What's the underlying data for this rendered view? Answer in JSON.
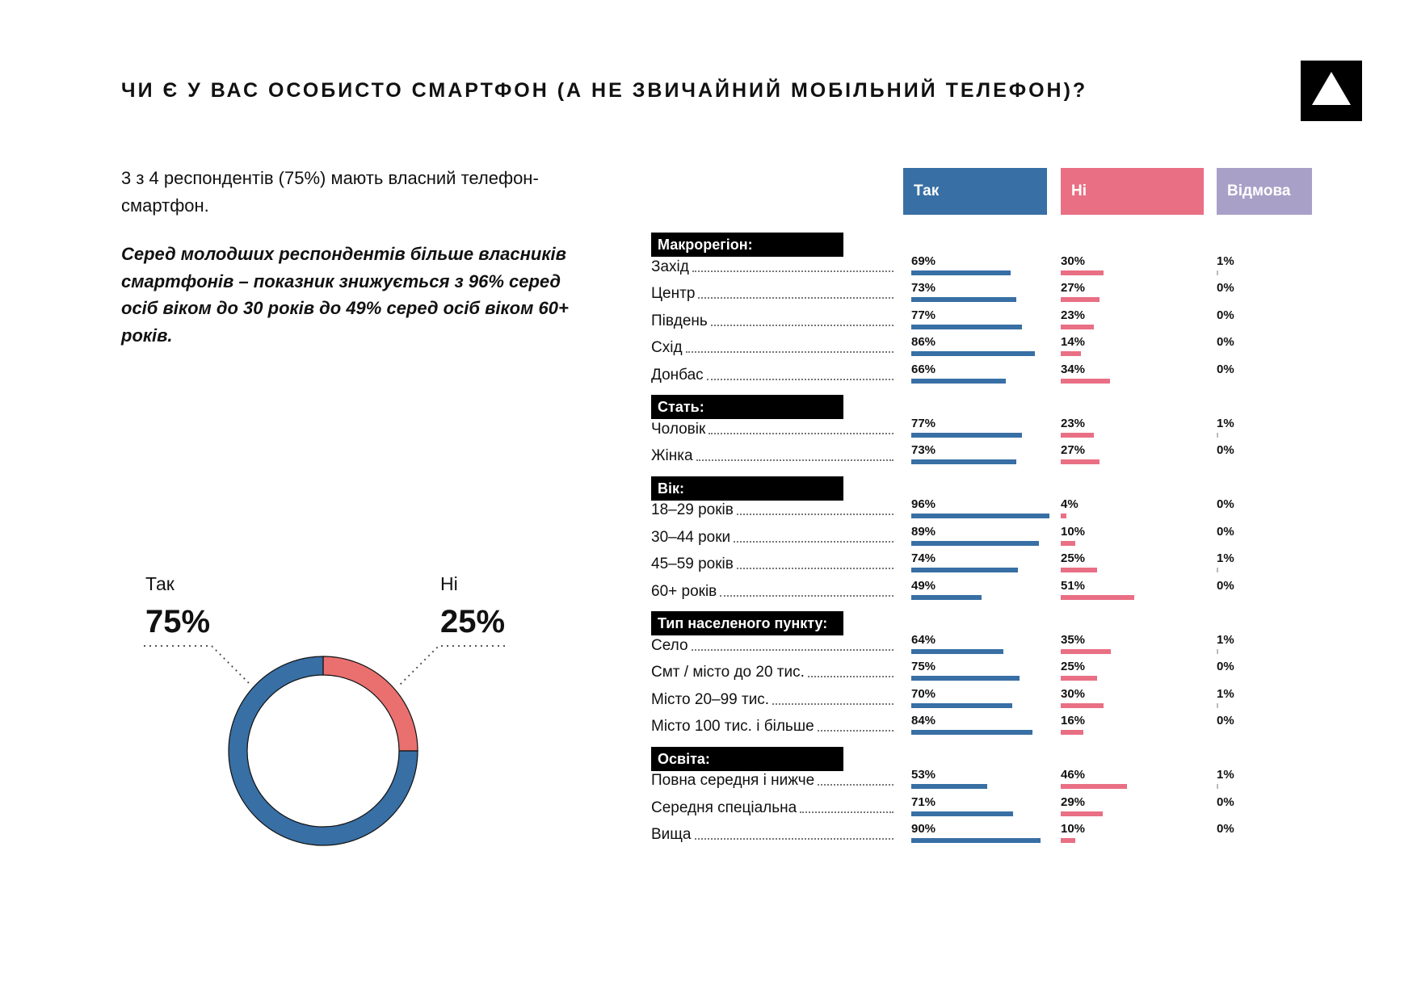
{
  "title": "ЧИ Є У ВАС ОСОБИСТО СМАРТФОН (А НЕ ЗВИЧАЙНИЙ МОБІЛЬНИЙ ТЕЛЕФОН)?",
  "intro": "3 з 4 респондентів (75%) мають власний телефон-смартфон.",
  "note": "Серед молодших респондентів більше власників смартфонів – показник знижується з 96% серед осіб віком до 30 років до 49% серед осіб віком 60+ років.",
  "colors": {
    "yes": "#386fa4",
    "no": "#e96f84",
    "refuse": "#a9a0c8",
    "donut_no": "#ea7070"
  },
  "chart_data": [
    {
      "type": "pie",
      "variant": "donut",
      "slices": [
        {
          "label": "Так",
          "value": 75,
          "display": "75%"
        },
        {
          "label": "Ні",
          "value": 25,
          "display": "25%"
        }
      ]
    },
    {
      "type": "bar",
      "orientation": "horizontal",
      "series_names": [
        "Так",
        "Ні",
        "Відмова"
      ],
      "groups": [
        {
          "name": "Макрорегіон:",
          "rows": [
            {
              "label": "Захід",
              "values": [
                69,
                30,
                1
              ]
            },
            {
              "label": "Центр",
              "values": [
                73,
                27,
                0
              ]
            },
            {
              "label": "Південь",
              "values": [
                77,
                23,
                0
              ]
            },
            {
              "label": "Схід",
              "values": [
                86,
                14,
                0
              ]
            },
            {
              "label": "Донбас",
              "values": [
                66,
                34,
                0
              ]
            }
          ]
        },
        {
          "name": "Стать:",
          "rows": [
            {
              "label": "Чоловік",
              "values": [
                77,
                23,
                1
              ]
            },
            {
              "label": "Жінка",
              "values": [
                73,
                27,
                0
              ]
            }
          ]
        },
        {
          "name": "Вік:",
          "rows": [
            {
              "label": "18–29 років",
              "values": [
                96,
                4,
                0
              ]
            },
            {
              "label": "30–44 роки",
              "values": [
                89,
                10,
                0
              ]
            },
            {
              "label": "45–59 років",
              "values": [
                74,
                25,
                1
              ]
            },
            {
              "label": "60+ років",
              "values": [
                49,
                51,
                0
              ]
            }
          ]
        },
        {
          "name": "Тип населеного пункту:",
          "rows": [
            {
              "label": "Село",
              "values": [
                64,
                35,
                1
              ]
            },
            {
              "label": "Смт / місто до 20 тис.",
              "values": [
                75,
                25,
                0
              ]
            },
            {
              "label": "Місто 20–99 тис.",
              "values": [
                70,
                30,
                1
              ]
            },
            {
              "label": "Місто 100 тис. і більше",
              "values": [
                84,
                16,
                0
              ]
            }
          ]
        },
        {
          "name": "Освіта:",
          "rows": [
            {
              "label": "Повна середня і нижче",
              "values": [
                53,
                46,
                1
              ]
            },
            {
              "label": "Середня спеціальна",
              "values": [
                71,
                29,
                0
              ]
            },
            {
              "label": "Вища",
              "values": [
                90,
                10,
                0
              ]
            }
          ]
        }
      ]
    }
  ]
}
